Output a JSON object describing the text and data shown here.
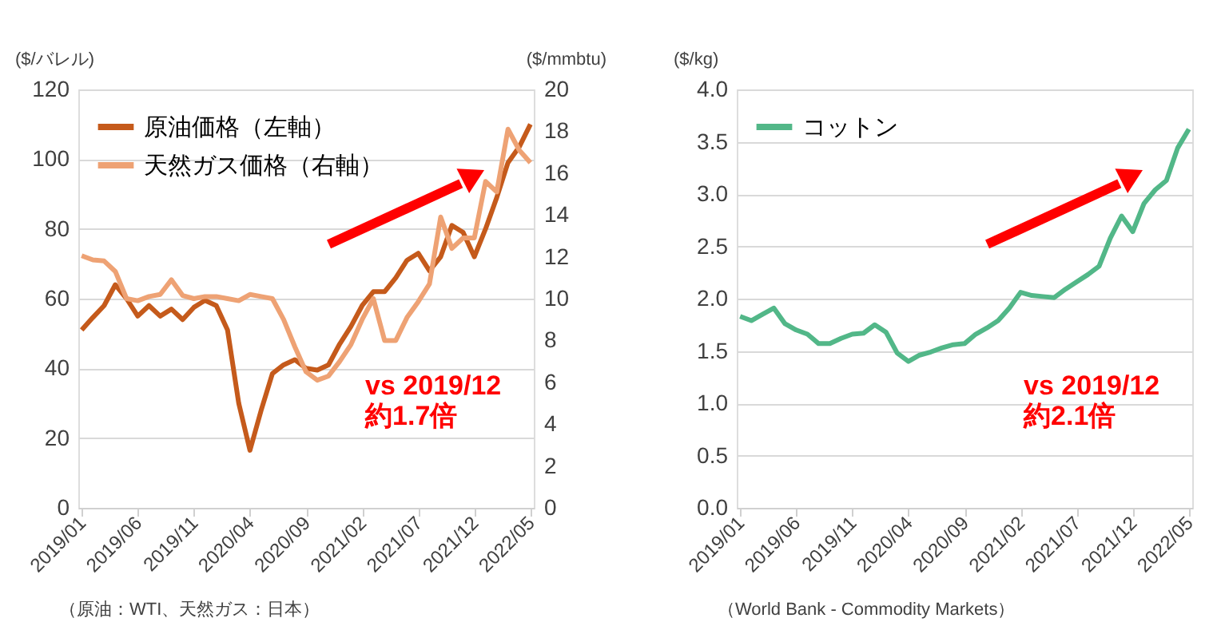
{
  "chart_data": [
    {
      "type": "line",
      "ylabel": "($/バレル)",
      "y2label": "($/mmbtu)",
      "categories": [
        "2019/01",
        null,
        null,
        null,
        null,
        "2019/06",
        null,
        null,
        null,
        null,
        "2019/11",
        null,
        null,
        null,
        null,
        "2020/04",
        null,
        null,
        null,
        null,
        "2020/09",
        null,
        null,
        null,
        null,
        "2021/02",
        null,
        null,
        null,
        null,
        "2021/07",
        null,
        null,
        null,
        null,
        "2021/12",
        null,
        null,
        null,
        null,
        "2022/05"
      ],
      "series": [
        {
          "name": "原油価格（左軸）",
          "color": "#c55a1b",
          "axis": "y",
          "values": [
            51,
            54.6,
            58,
            64,
            60,
            55,
            58,
            55,
            57,
            54,
            57.5,
            59.5,
            58,
            51,
            30,
            16.5,
            28,
            38.5,
            41,
            42.5,
            40,
            39.5,
            41,
            47,
            52,
            58,
            62,
            62,
            66,
            71,
            73,
            68,
            72,
            81,
            79,
            72,
            80,
            89,
            99,
            103.5,
            110
          ]
        },
        {
          "name": "天然ガス価格（右軸）",
          "color": "#eea274",
          "axis": "y2",
          "values": [
            12.05,
            11.85,
            11.8,
            11.3,
            10,
            9.9,
            10.1,
            10.2,
            10.9,
            10.15,
            10,
            10.1,
            10.1,
            10,
            9.9,
            10.2,
            10.1,
            10,
            9,
            7.7,
            6.5,
            6.1,
            6.3,
            7,
            7.8,
            9,
            10,
            8,
            8,
            9.1,
            9.85,
            10.7,
            13.9,
            12.4,
            12.9,
            12.9,
            15.6,
            15.1,
            18.1,
            17.1,
            16.5
          ]
        }
      ],
      "ylim": [
        0,
        120
      ],
      "yticks": [
        0,
        20,
        40,
        60,
        80,
        100,
        120
      ],
      "y2lim": [
        0,
        20
      ],
      "y2ticks": [
        0,
        2,
        4,
        6,
        8,
        10,
        12,
        14,
        16,
        18,
        20
      ],
      "grid": "y",
      "legend": "top left",
      "line_style": "solid",
      "annotations": [
        "vs 2019/12\n約1.7倍",
        "（原油：WTI、天然ガス：日本）"
      ]
    },
    {
      "type": "line",
      "ylabel": "($/kg)",
      "categories": [
        "2019/01",
        null,
        null,
        null,
        null,
        "2019/06",
        null,
        null,
        null,
        null,
        "2019/11",
        null,
        null,
        null,
        null,
        "2020/04",
        null,
        null,
        null,
        null,
        "2020/09",
        null,
        null,
        null,
        null,
        "2021/02",
        null,
        null,
        null,
        null,
        "2021/07",
        null,
        null,
        null,
        null,
        "2021/12",
        null,
        null,
        null,
        null,
        "2022/05"
      ],
      "series": [
        {
          "name": "コットン",
          "color": "#52b788",
          "values": [
            1.83,
            1.79,
            1.85,
            1.91,
            1.76,
            1.7,
            1.66,
            1.57,
            1.57,
            1.62,
            1.66,
            1.67,
            1.75,
            1.68,
            1.48,
            1.4,
            1.46,
            1.49,
            1.53,
            1.56,
            1.57,
            1.66,
            1.72,
            1.79,
            1.91,
            2.06,
            2.03,
            2.02,
            2.01,
            2.09,
            2.16,
            2.23,
            2.31,
            2.58,
            2.79,
            2.64,
            2.91,
            3.04,
            3.13,
            3.44,
            3.62
          ]
        }
      ],
      "ylim": [
        0,
        4
      ],
      "yticks": [
        {
          "value": 0,
          "label": "0.0"
        },
        0.5,
        {
          "value": 1,
          "label": "1.0"
        },
        1.5,
        {
          "value": 2,
          "label": "2.0"
        },
        2.5,
        {
          "value": 3,
          "label": "3.0"
        },
        3.5,
        {
          "value": 4,
          "label": "4.0"
        }
      ],
      "grid": "y",
      "legend": "top left",
      "line_style": "solid",
      "annotations": [
        "vs 2019/12\n約2.1倍",
        "（World Bank - Commodity Markets）"
      ]
    }
  ]
}
